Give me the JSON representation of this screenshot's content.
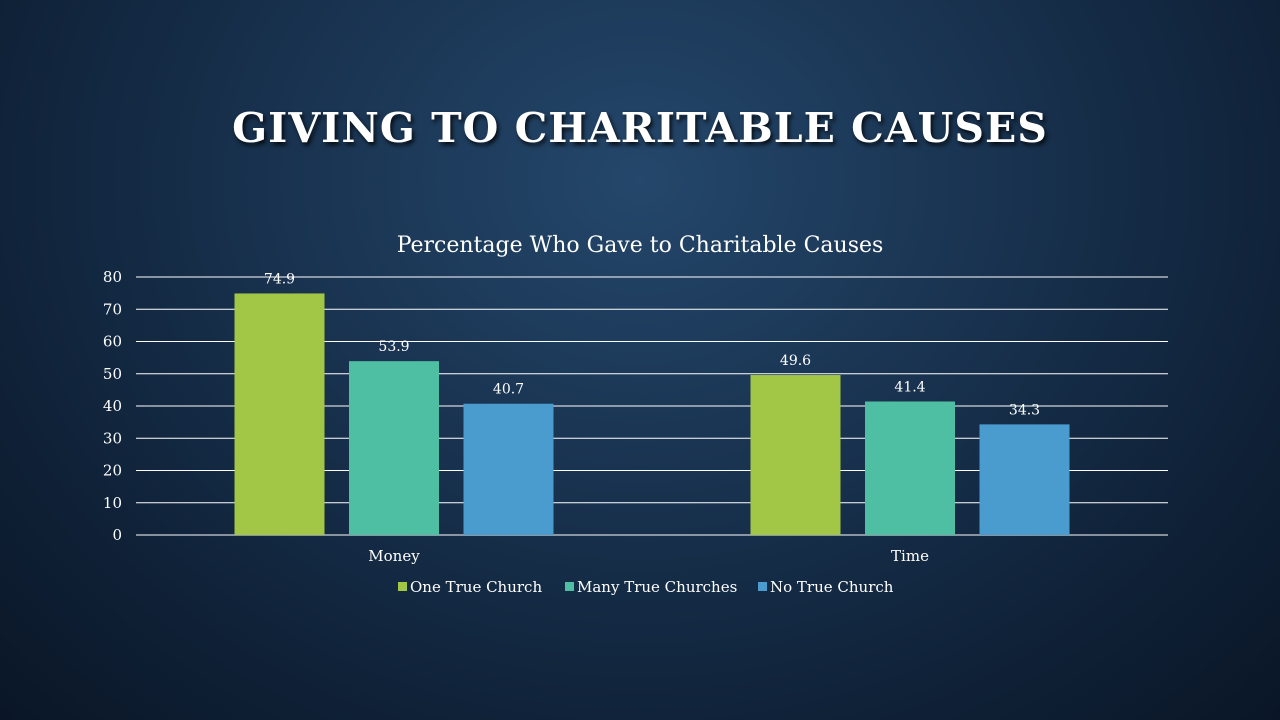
{
  "slide": {
    "title": "GIVING TO CHARITABLE CAUSES"
  },
  "chart_data": {
    "type": "bar",
    "title": "Percentage Who Gave to Charitable Causes",
    "categories": [
      "Money",
      "Time"
    ],
    "series": [
      {
        "name": "One True Church",
        "values": [
          74.9,
          49.6
        ],
        "color": "#a2c645"
      },
      {
        "name": "Many True Churches",
        "values": [
          53.9,
          41.4
        ],
        "color": "#4fbfa3"
      },
      {
        "name": "No True Church",
        "values": [
          40.7,
          34.3
        ],
        "color": "#4a9ccf"
      }
    ],
    "ylim": [
      0,
      80
    ],
    "yticks": [
      "0",
      "10",
      "20",
      "30",
      "40",
      "50",
      "60",
      "70",
      "80"
    ],
    "grid": true,
    "legend": "bottom",
    "xlabel": "",
    "ylabel": ""
  }
}
